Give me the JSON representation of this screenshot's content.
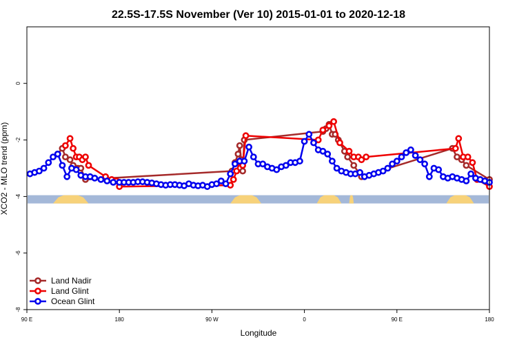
{
  "chart_data": {
    "type": "line",
    "title": "22.5S-17.5S November (Ver 10)   2015-01-01 to 2020-12-18",
    "xlabel": "Longitude",
    "ylabel": "XCO2 - MLO trend (ppm)",
    "xlim": [
      -60,
      240
    ],
    "ylim": [
      -8,
      2
    ],
    "x_ticks": [
      {
        "value": -60,
        "label": "90 E"
      },
      {
        "value": 0,
        "label": "180"
      },
      {
        "value": 60,
        "label": "90 W"
      },
      {
        "value": 120,
        "label": "0"
      },
      {
        "value": 180,
        "label": "90 E"
      },
      {
        "value": 240,
        "label": "180"
      }
    ],
    "y_ticks": [
      {
        "value": 0,
        "label": "0"
      },
      {
        "value": -2,
        "label": "-2"
      },
      {
        "value": -4,
        "label": "-4"
      },
      {
        "value": -6,
        "label": "-6"
      },
      {
        "value": -8,
        "label": "-8"
      }
    ],
    "grid": false,
    "legend_position": "bottom-left",
    "land_mask": {
      "y": -4.1,
      "ocean_color": "#a4b8d8",
      "land_color": "#f7d27a",
      "land_segments": [
        [
          -43,
          -20
        ],
        [
          72,
          92
        ],
        [
          128,
          144
        ],
        [
          149,
          152
        ],
        [
          212,
          230
        ]
      ]
    },
    "series": [
      {
        "name": "Land Nadir",
        "color": "#a52a2a",
        "x": [
          -40,
          -37,
          -35,
          -32,
          -30,
          -27,
          -25,
          -22,
          73,
          75,
          77,
          78,
          79,
          80,
          81,
          132,
          134,
          136,
          138,
          140,
          142,
          146,
          148,
          152,
          157,
          216,
          219,
          222,
          225,
          240
        ],
        "y": [
          -2.5,
          -2.3,
          -2.6,
          -2.7,
          -2.9,
          -3.0,
          -3.0,
          -3.4,
          -3.1,
          -2.8,
          -2.5,
          -2.2,
          -2.7,
          -3.1,
          -2.0,
          -1.7,
          -1.6,
          -1.45,
          -1.8,
          -1.8,
          -2.0,
          -2.4,
          -2.6,
          -2.9,
          -3.3,
          -2.3,
          -2.6,
          -2.7,
          -2.9,
          -3.4
        ]
      },
      {
        "name": "Land Glint",
        "color": "#ee0000",
        "x": [
          -35,
          -32,
          -30,
          -28,
          -26,
          -24,
          -22,
          -20,
          -9,
          -5,
          -2,
          0,
          72,
          74,
          76,
          78,
          80,
          82,
          129,
          132,
          136,
          139,
          143,
          149,
          152,
          155,
          157,
          160,
          218,
          220,
          223,
          226,
          229,
          232,
          240
        ],
        "y": [
          -2.2,
          -1.95,
          -2.3,
          -2.6,
          -2.6,
          -2.7,
          -2.6,
          -2.9,
          -3.3,
          -3.4,
          -3.45,
          -3.65,
          -3.6,
          -3.4,
          -3.1,
          -2.8,
          -2.9,
          -1.85,
          -2.0,
          -1.65,
          -1.5,
          -1.35,
          -2.1,
          -2.4,
          -2.6,
          -2.6,
          -2.7,
          -2.6,
          -2.3,
          -1.95,
          -2.6,
          -2.6,
          -2.8,
          -3.4,
          -3.65
        ]
      },
      {
        "name": "Ocean Glint",
        "color": "#0000ee",
        "x": [
          -58,
          -55,
          -52,
          -49,
          -46,
          -43,
          -40,
          -37,
          -34,
          -31,
          -28,
          -25,
          -22,
          -19,
          -16,
          -12,
          -8,
          -4,
          0,
          3,
          6,
          9,
          12,
          15,
          18,
          21,
          24,
          27,
          30,
          33,
          36,
          39,
          42,
          45,
          48,
          51,
          54,
          57,
          60,
          63,
          66,
          69,
          72,
          75,
          78,
          81,
          84,
          87,
          90,
          93,
          96,
          99,
          102,
          105,
          108,
          111,
          114,
          117,
          120,
          123,
          126,
          129,
          132,
          135,
          138,
          141,
          144,
          147,
          150,
          153,
          156,
          159,
          162,
          165,
          168,
          171,
          174,
          177,
          180,
          183,
          186,
          189,
          192,
          195,
          198,
          201,
          204,
          207,
          210,
          213,
          216,
          219,
          222,
          225,
          228,
          231,
          234,
          237,
          240
        ],
        "y": [
          -3.2,
          -3.15,
          -3.1,
          -3.0,
          -2.8,
          -2.6,
          -2.5,
          -2.9,
          -3.3,
          -3.0,
          -3.05,
          -3.25,
          -3.3,
          -3.3,
          -3.35,
          -3.4,
          -3.45,
          -3.5,
          -3.5,
          -3.5,
          -3.5,
          -3.5,
          -3.48,
          -3.48,
          -3.5,
          -3.52,
          -3.55,
          -3.58,
          -3.6,
          -3.58,
          -3.58,
          -3.6,
          -3.62,
          -3.55,
          -3.6,
          -3.62,
          -3.6,
          -3.65,
          -3.58,
          -3.55,
          -3.45,
          -3.55,
          -3.2,
          -2.85,
          -2.75,
          -2.75,
          -2.25,
          -2.6,
          -2.85,
          -2.85,
          -2.95,
          -3.0,
          -3.05,
          -2.95,
          -2.9,
          -2.8,
          -2.8,
          -2.75,
          -2.05,
          -1.8,
          -2.1,
          -2.35,
          -2.4,
          -2.5,
          -2.75,
          -3.0,
          -3.1,
          -3.15,
          -3.2,
          -3.2,
          -3.15,
          -3.3,
          -3.25,
          -3.2,
          -3.15,
          -3.1,
          -3.0,
          -2.85,
          -2.75,
          -2.6,
          -2.45,
          -2.35,
          -2.55,
          -2.7,
          -2.85,
          -3.3,
          -3.0,
          -3.05,
          -3.3,
          -3.35,
          -3.3,
          -3.35,
          -3.4,
          -3.45,
          -3.2,
          -3.35,
          -3.4,
          -3.45,
          -3.5
        ]
      }
    ]
  }
}
